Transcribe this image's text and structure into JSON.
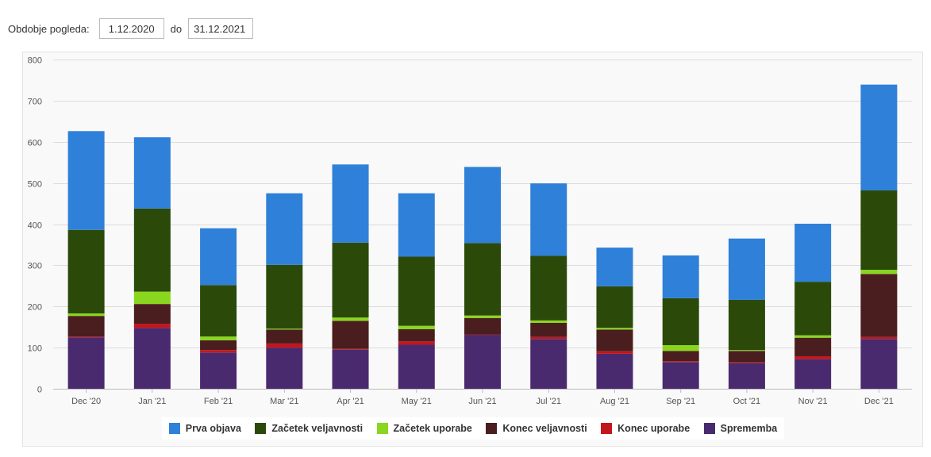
{
  "filter": {
    "label": "Obdobje pogleda:",
    "from_value": "1.12.2020",
    "separator": "do",
    "to_value": "31.12.2021"
  },
  "chart_data": {
    "type": "bar",
    "stacked": true,
    "title": "",
    "xlabel": "",
    "ylabel": "",
    "ylim": [
      0,
      800
    ],
    "yticks": [
      0,
      100,
      200,
      300,
      400,
      500,
      600,
      700,
      800
    ],
    "grid": true,
    "legend_position": "bottom",
    "categories": [
      "Dec '20",
      "Jan '21",
      "Feb '21",
      "Mar '21",
      "Apr '21",
      "May '21",
      "Jun '21",
      "Jul '21",
      "Aug '21",
      "Sep '21",
      "Oct '21",
      "Nov '21",
      "Dec '21"
    ],
    "series": [
      {
        "name": "Sprememba",
        "color": "#4a2a6e",
        "values": [
          125,
          148,
          88,
          100,
          95,
          107,
          131,
          121,
          85,
          65,
          62,
          72,
          121
        ]
      },
      {
        "name": "Konec uporabe",
        "color": "#c3161c",
        "values": [
          2,
          10,
          6,
          10,
          2,
          8,
          1,
          5,
          6,
          2,
          2,
          7,
          5
        ]
      },
      {
        "name": "Konec veljavnosti",
        "color": "#4a1e1e",
        "values": [
          50,
          48,
          24,
          34,
          68,
          30,
          40,
          34,
          53,
          25,
          28,
          45,
          153
        ]
      },
      {
        "name": "Začetek uporabe",
        "color": "#8ad61f",
        "values": [
          6,
          30,
          9,
          2,
          8,
          8,
          6,
          6,
          4,
          14,
          2,
          6,
          10
        ]
      },
      {
        "name": "Začetek veljavnosti",
        "color": "#2b4a0a",
        "values": [
          203,
          202,
          125,
          155,
          182,
          168,
          176,
          157,
          101,
          114,
          122,
          130,
          193
        ]
      },
      {
        "name": "Prva objava",
        "color": "#2f80d8",
        "values": [
          240,
          173,
          138,
          174,
          190,
          154,
          185,
          176,
          94,
          104,
          149,
          141,
          257
        ]
      }
    ],
    "legend_order": [
      "Prva objava",
      "Začetek veljavnosti",
      "Začetek uporabe",
      "Konec veljavnosti",
      "Konec uporabe",
      "Sprememba"
    ]
  }
}
